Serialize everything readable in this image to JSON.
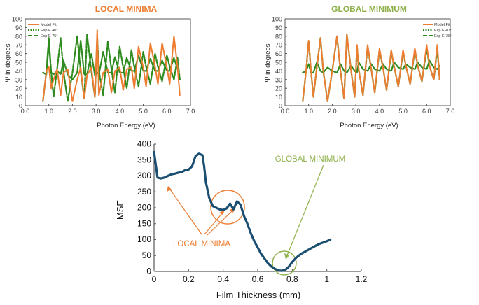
{
  "colors": {
    "orange": "#ED7D31",
    "green": "#2E8B1E",
    "olive": "#8FB04A",
    "navy": "#1B4F72"
  },
  "chart_data": [
    {
      "type": "line",
      "title": "LOCAL MINIMA",
      "xlabel": "Photon Energy (eV)",
      "ylabel": "Ψ in degrees",
      "xlim": [
        0,
        7
      ],
      "ylim": [
        0,
        100
      ],
      "xticks": [
        "0.0",
        "1.0",
        "2.0",
        "3.0",
        "4.0",
        "5.0",
        "6.0",
        "7.0"
      ],
      "yticks": [
        "0",
        "10",
        "20",
        "30",
        "40",
        "50",
        "60",
        "70",
        "80",
        "90",
        "100"
      ],
      "legend": [
        "Model Fit",
        "Exp E 40°",
        "Exp E 75°"
      ],
      "legend_position": "top-left",
      "series": [
        {
          "name": "Model Fit",
          "x": [
            0.75,
            0.9,
            1.0,
            1.1,
            1.2,
            1.35,
            1.5,
            1.62,
            1.8,
            2.0,
            2.2,
            2.35,
            2.5,
            2.62,
            2.8,
            2.95,
            3.05,
            3.12,
            3.3,
            3.5,
            3.65,
            3.8,
            4.0,
            4.15,
            4.3,
            4.5,
            4.62,
            4.8,
            5.0,
            5.12,
            5.3,
            5.5,
            5.62,
            5.8,
            6.0,
            6.12,
            6.3,
            6.45,
            6.55
          ],
          "y": [
            5,
            40,
            45,
            20,
            30,
            42,
            12,
            38,
            42,
            5,
            30,
            44,
            8,
            35,
            44,
            10,
            87,
            12,
            38,
            42,
            15,
            40,
            44,
            18,
            42,
            44,
            20,
            68,
            44,
            22,
            72,
            45,
            25,
            72,
            44,
            25,
            80,
            45,
            12
          ]
        },
        {
          "name": "Exp E 40°",
          "x": [
            0.75,
            0.9,
            1.0,
            1.1,
            1.2,
            1.35,
            1.5,
            1.62,
            1.8,
            2.0,
            2.2,
            2.35,
            2.5,
            2.62,
            2.8,
            2.95,
            3.05,
            3.12,
            3.3,
            3.5,
            3.65,
            3.8,
            4.0,
            4.15,
            4.3,
            4.5,
            4.62,
            4.8,
            5.0,
            5.12,
            5.3,
            5.5,
            5.62,
            5.8,
            6.0,
            6.12,
            6.3,
            6.45,
            6.55
          ],
          "y": [
            38,
            36,
            72,
            38,
            36,
            40,
            36,
            52,
            36,
            30,
            38,
            75,
            36,
            36,
            60,
            35,
            38,
            36,
            62,
            38,
            38,
            56,
            38,
            38,
            55,
            40,
            40,
            58,
            40,
            40,
            54,
            40,
            40,
            52,
            40,
            40,
            55,
            42,
            30
          ]
        },
        {
          "name": "Exp E 75°",
          "x": [
            0.75,
            0.9,
            1.0,
            1.1,
            1.2,
            1.35,
            1.5,
            1.62,
            1.8,
            2.0,
            2.2,
            2.35,
            2.5,
            2.62,
            2.8,
            2.95,
            3.05,
            3.12,
            3.3,
            3.5,
            3.65,
            3.8,
            4.0,
            4.15,
            4.3,
            4.5,
            4.62,
            4.8,
            5.0,
            5.12,
            5.3,
            5.5,
            5.62,
            5.8,
            6.0,
            6.12,
            6.3,
            6.45,
            6.55
          ],
          "y": [
            5,
            40,
            78,
            38,
            10,
            42,
            78,
            40,
            5,
            38,
            80,
            40,
            8,
            82,
            40,
            10,
            80,
            40,
            12,
            74,
            42,
            15,
            68,
            44,
            20,
            64,
            44,
            22,
            62,
            45,
            25,
            60,
            45,
            28,
            58,
            45,
            30,
            55,
            30
          ]
        }
      ]
    },
    {
      "type": "line",
      "title": "GLOBAL MINIMUM",
      "xlabel": "Photon Energy (eV)",
      "ylabel": "Ψ in degrees",
      "xlim": [
        0,
        7
      ],
      "ylim": [
        0,
        100
      ],
      "xticks": [
        "0.0",
        "1.0",
        "2.0",
        "3.0",
        "4.0",
        "5.0",
        "6.0",
        "7.0"
      ],
      "yticks": [
        "0",
        "10",
        "20",
        "30",
        "40",
        "50",
        "60",
        "70",
        "80",
        "90",
        "100"
      ],
      "legend": [
        "Model Fit",
        "Exp E 40°",
        "Exp E 75°"
      ],
      "legend_position": "top-right",
      "series": [
        {
          "name": "Model Fit",
          "x": [
            0.75,
            0.9,
            1.0,
            1.1,
            1.2,
            1.35,
            1.5,
            1.62,
            1.8,
            2.0,
            2.2,
            2.35,
            2.5,
            2.62,
            2.8,
            2.95,
            3.05,
            3.12,
            3.3,
            3.5,
            3.65,
            3.8,
            4.0,
            4.15,
            4.3,
            4.5,
            4.62,
            4.8,
            5.0,
            5.12,
            5.3,
            5.5,
            5.62,
            5.8,
            6.0,
            6.12,
            6.3,
            6.45,
            6.55
          ],
          "y": [
            5,
            42,
            75,
            40,
            10,
            45,
            78,
            40,
            5,
            40,
            80,
            40,
            8,
            82,
            40,
            10,
            70,
            42,
            12,
            70,
            42,
            15,
            66,
            44,
            18,
            64,
            45,
            22,
            64,
            46,
            25,
            66,
            46,
            28,
            70,
            46,
            30,
            70,
            30
          ]
        },
        {
          "name": "Exp E 40°",
          "x": [
            0.75,
            0.9,
            1.0,
            1.1,
            1.2,
            1.35,
            1.5,
            1.62,
            1.8,
            2.0,
            2.2,
            2.35,
            2.5,
            2.62,
            2.8,
            2.95,
            3.05,
            3.12,
            3.3,
            3.5,
            3.65,
            3.8,
            4.0,
            4.15,
            4.3,
            4.5,
            4.62,
            4.8,
            5.0,
            5.12,
            5.3,
            5.5,
            5.62,
            5.8,
            6.0,
            6.12,
            6.3,
            6.45,
            6.55
          ],
          "y": [
            38,
            40,
            48,
            38,
            38,
            50,
            40,
            38,
            44,
            40,
            38,
            48,
            40,
            38,
            46,
            40,
            38,
            50,
            42,
            40,
            48,
            42,
            40,
            48,
            42,
            40,
            50,
            44,
            42,
            48,
            44,
            42,
            50,
            44,
            42,
            52,
            44,
            42,
            46
          ]
        },
        {
          "name": "Exp E 75°",
          "x": [
            0.75,
            0.9,
            1.0,
            1.1,
            1.2,
            1.35,
            1.5,
            1.62,
            1.8,
            2.0,
            2.2,
            2.35,
            2.5,
            2.62,
            2.8,
            2.95,
            3.05,
            3.12,
            3.3,
            3.5,
            3.65,
            3.8,
            4.0,
            4.15,
            4.3,
            4.5,
            4.62,
            4.8,
            5.0,
            5.12,
            5.3,
            5.5,
            5.62,
            5.8,
            6.0,
            6.12,
            6.3,
            6.45,
            6.55
          ],
          "y": [
            5,
            42,
            75,
            40,
            10,
            45,
            78,
            40,
            5,
            40,
            80,
            40,
            8,
            82,
            40,
            10,
            68,
            42,
            12,
            68,
            42,
            15,
            64,
            44,
            18,
            62,
            45,
            22,
            62,
            46,
            25,
            64,
            46,
            28,
            66,
            46,
            30,
            66,
            30
          ]
        }
      ]
    },
    {
      "type": "line",
      "title": "",
      "xlabel": "Film Thickness (mm)",
      "ylabel": "MSE",
      "xlim": [
        0,
        1.2
      ],
      "ylim": [
        0,
        400
      ],
      "xticks": [
        "0",
        "0.2",
        "0.4",
        "0.6",
        "0.8",
        "1",
        "1.2"
      ],
      "yticks": [
        "0",
        "50",
        "100",
        "150",
        "200",
        "250",
        "300",
        "350",
        "400"
      ],
      "series": [
        {
          "name": "",
          "x": [
            0,
            0.02,
            0.04,
            0.06,
            0.08,
            0.1,
            0.12,
            0.14,
            0.16,
            0.18,
            0.2,
            0.22,
            0.24,
            0.26,
            0.28,
            0.29,
            0.3,
            0.32,
            0.34,
            0.36,
            0.38,
            0.4,
            0.42,
            0.44,
            0.46,
            0.48,
            0.5,
            0.52,
            0.54,
            0.56,
            0.58,
            0.6,
            0.62,
            0.64,
            0.66,
            0.68,
            0.7,
            0.72,
            0.74,
            0.76,
            0.78,
            0.8,
            0.82,
            0.85,
            0.9,
            0.95,
            1.0,
            1.02
          ],
          "y": [
            375,
            295,
            292,
            295,
            300,
            305,
            307,
            310,
            312,
            318,
            320,
            330,
            362,
            370,
            365,
            330,
            280,
            230,
            205,
            200,
            195,
            193,
            198,
            213,
            195,
            220,
            210,
            175,
            150,
            120,
            95,
            75,
            55,
            40,
            25,
            15,
            8,
            3,
            2,
            5,
            15,
            30,
            42,
            55,
            70,
            85,
            95,
            100
          ]
        }
      ],
      "annotations": [
        {
          "text": "LOCAL MINIMA",
          "color": "#ED7D31"
        },
        {
          "text": "GLOBAL MINIMUM",
          "color": "#8FB04A"
        }
      ]
    }
  ]
}
